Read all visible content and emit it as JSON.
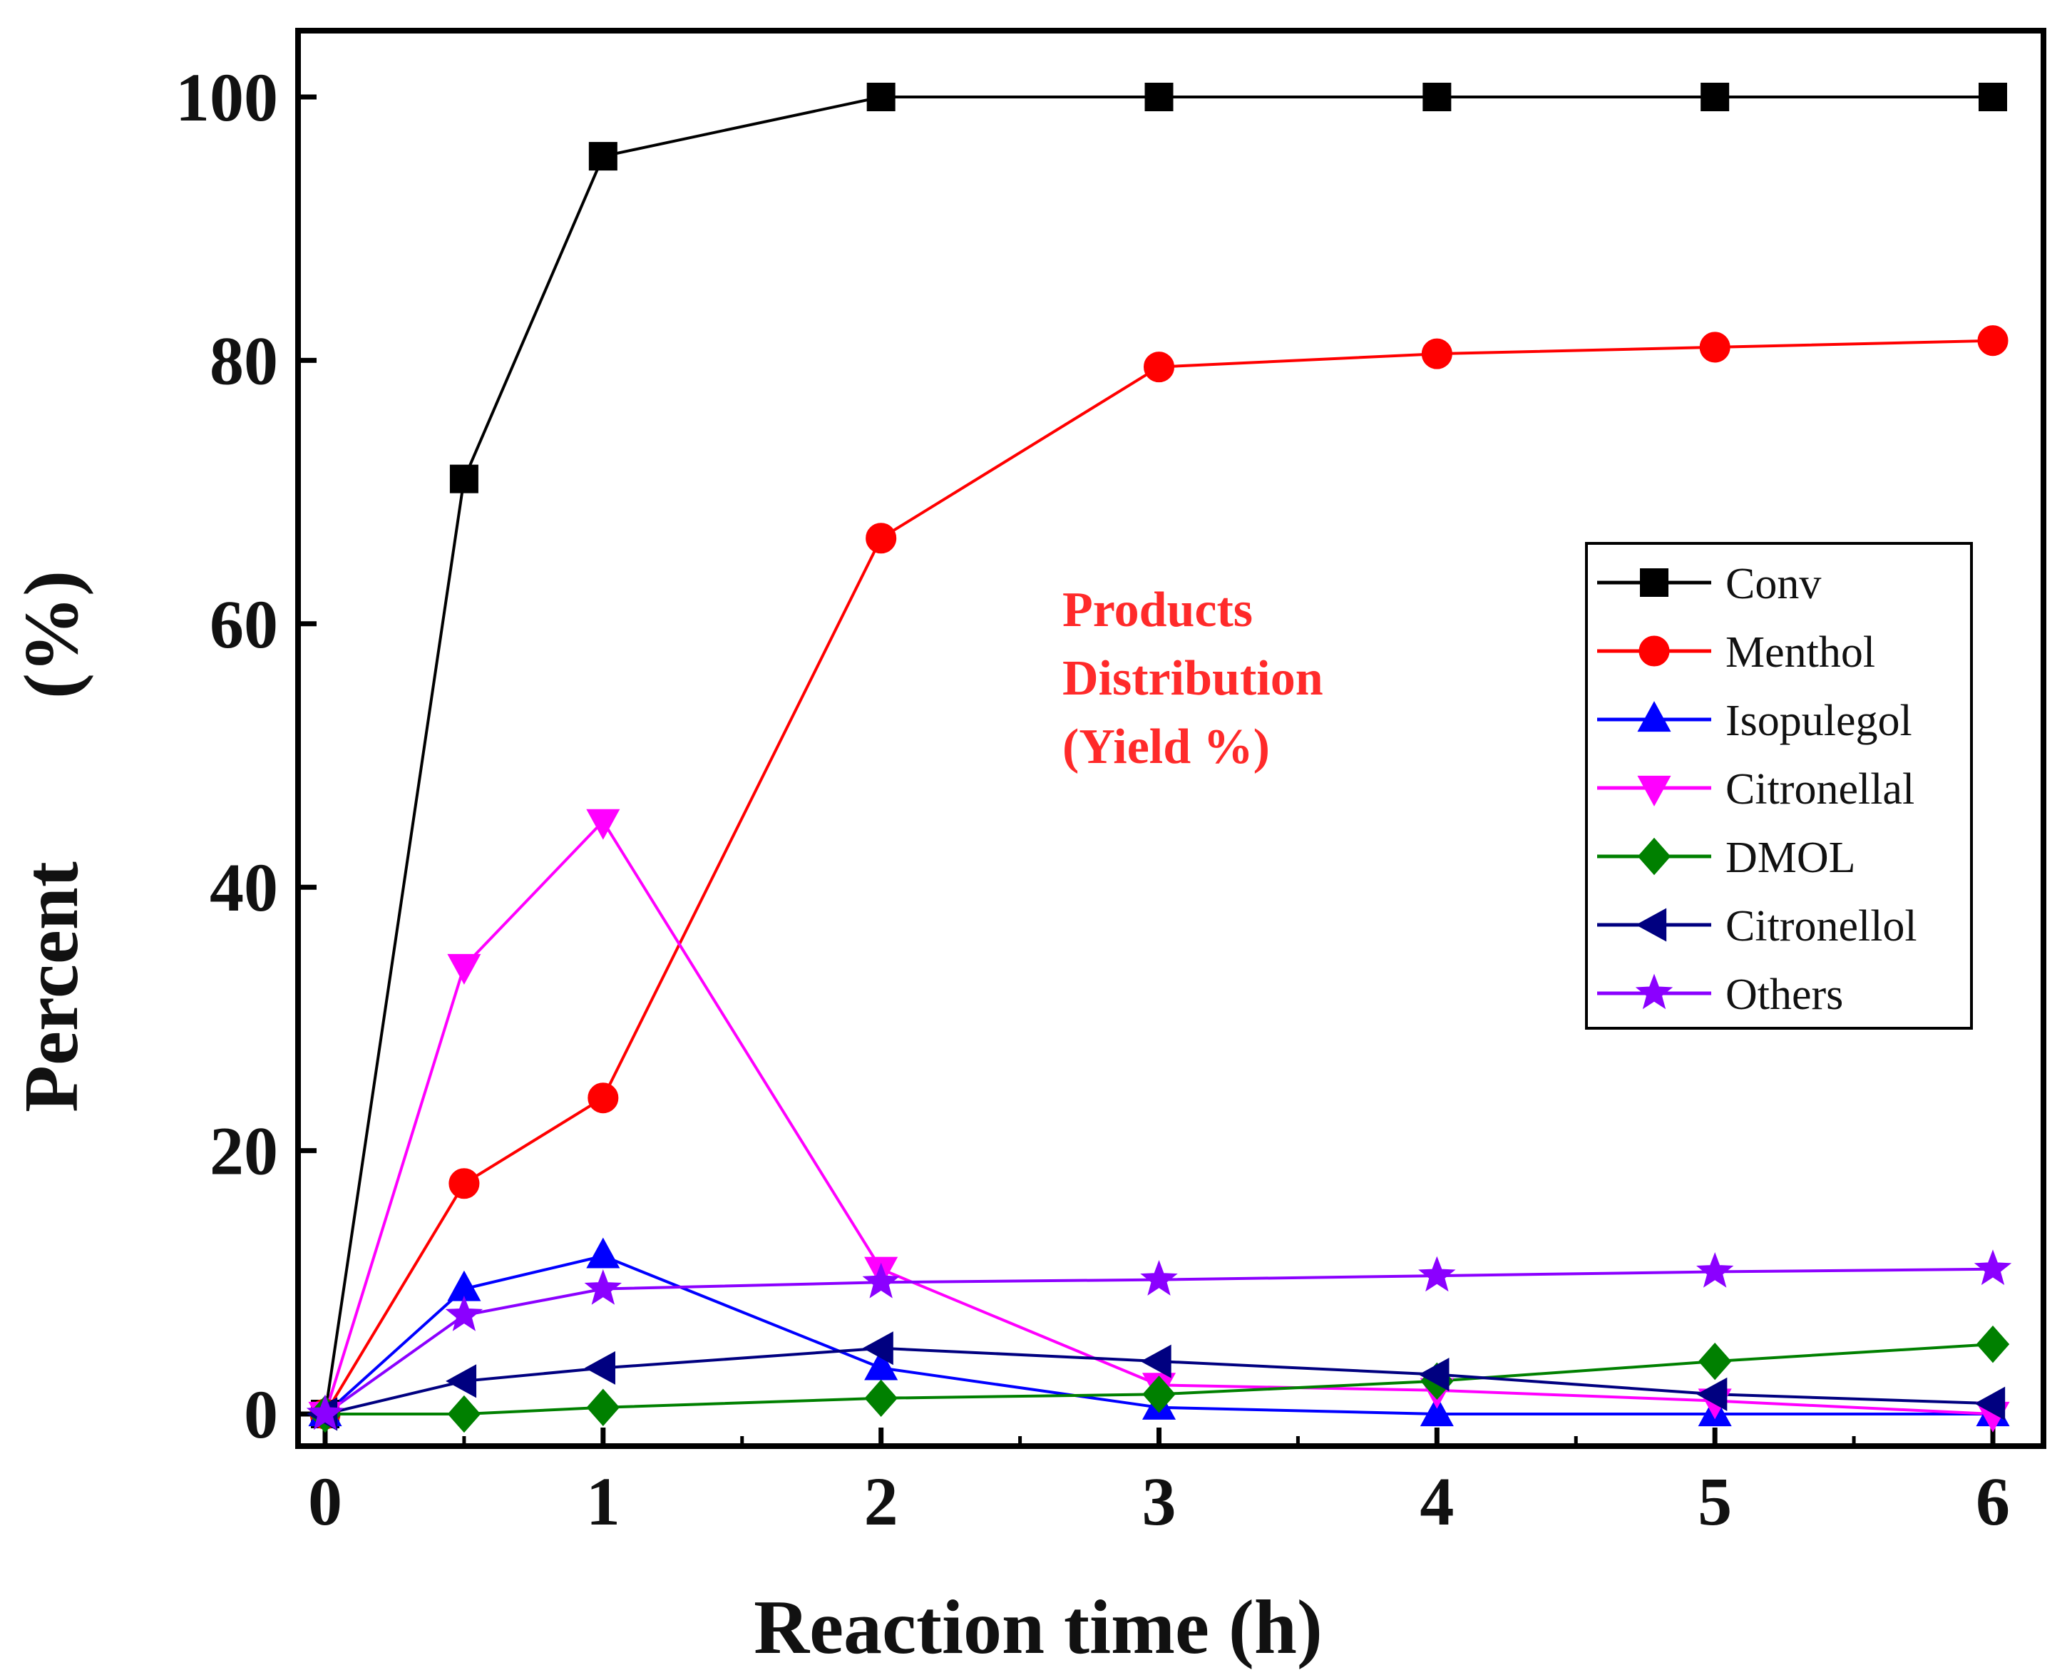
{
  "chart_data": {
    "type": "line",
    "title": "",
    "xlabel": "Reaction time (h)",
    "ylabel": "Percent",
    "ylabel_unit": "(%)",
    "xlim": [
      -0.1,
      6.1
    ],
    "ylim": [
      -2,
      105
    ],
    "xticks": [
      0,
      1,
      2,
      3,
      4,
      5,
      6
    ],
    "yticks": [
      0,
      20,
      40,
      60,
      80,
      100
    ],
    "grid": false,
    "legend_position": "center-right",
    "annotation": [
      "Products",
      "Distribution",
      "(Yield %)"
    ],
    "annotation_color": "#ff2a2a",
    "series": [
      {
        "name": "Conv",
        "marker": "square",
        "color": "#000000",
        "x": [
          0,
          0.5,
          1,
          2,
          3,
          4,
          5,
          6
        ],
        "values": [
          0,
          71,
          95.5,
          100,
          100,
          100,
          100,
          100
        ]
      },
      {
        "name": "Menthol",
        "marker": "circle",
        "color": "#ff0000",
        "x": [
          0,
          0.5,
          1,
          2,
          3,
          4,
          5,
          6
        ],
        "values": [
          0,
          17.5,
          24,
          66.5,
          79.5,
          80.5,
          81,
          81.5
        ]
      },
      {
        "name": "Isopulegol",
        "marker": "triangle-up",
        "color": "#0000ff",
        "x": [
          0,
          0.5,
          1,
          2,
          3,
          4,
          5,
          6
        ],
        "values": [
          0,
          9.5,
          12,
          3.5,
          0.5,
          0,
          0,
          0
        ]
      },
      {
        "name": "Citronellal",
        "marker": "triangle-down",
        "color": "#ff00ff",
        "x": [
          0,
          0.5,
          1,
          2,
          3,
          4,
          5,
          6
        ],
        "values": [
          0,
          34,
          45,
          11,
          2.2,
          1.8,
          1,
          0
        ]
      },
      {
        "name": "DMOL",
        "marker": "diamond",
        "color": "#008000",
        "x": [
          0,
          0.5,
          1,
          2,
          3,
          4,
          5,
          6
        ],
        "values": [
          0,
          0,
          0.5,
          1.2,
          1.5,
          2.5,
          4,
          5.3
        ]
      },
      {
        "name": "Citronellol",
        "marker": "triangle-left",
        "color": "#000080",
        "x": [
          0,
          0.5,
          1,
          2,
          3,
          4,
          5,
          6
        ],
        "values": [
          0,
          2.5,
          3.5,
          5,
          4,
          3,
          1.5,
          0.8
        ]
      },
      {
        "name": "Others",
        "marker": "star",
        "color": "#8b00ff",
        "x": [
          0,
          0.5,
          1,
          2,
          3,
          4,
          5,
          6
        ],
        "values": [
          0,
          7.5,
          9.5,
          10,
          10.2,
          10.5,
          10.8,
          11
        ]
      }
    ]
  }
}
